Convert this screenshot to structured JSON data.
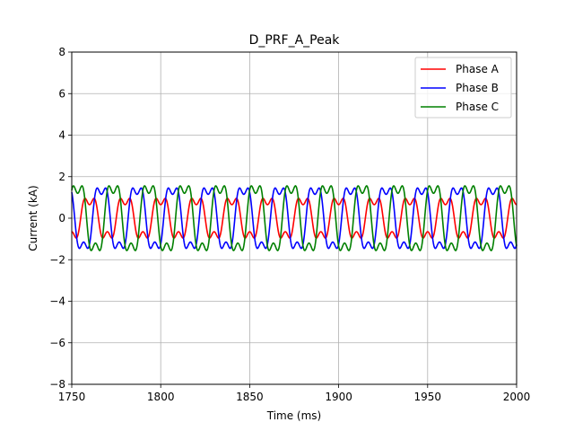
{
  "chart_data": {
    "type": "line",
    "title": "D_PRF_A_Peak",
    "xlabel": "Time (ms)",
    "ylabel": "Current (kA)",
    "xlim": [
      1750,
      2000
    ],
    "ylim": [
      -8,
      8
    ],
    "xticks": [
      1750,
      1800,
      1850,
      1900,
      1950,
      2000
    ],
    "yticks": [
      -8,
      -6,
      -4,
      -2,
      0,
      2,
      4,
      6,
      8
    ],
    "grid": true,
    "legend_position": "top-right",
    "series": [
      {
        "name": "Phase A",
        "color": "#ff0000",
        "base_amp": 1.0,
        "harm_amp": 0.35,
        "phase_deg": 90
      },
      {
        "name": "Phase B",
        "color": "#0000ff",
        "base_amp": 1.6,
        "harm_amp": 0.45,
        "phase_deg": -30
      },
      {
        "name": "Phase C",
        "color": "#008000",
        "base_amp": 1.7,
        "harm_amp": 0.5,
        "phase_deg": 210
      }
    ],
    "base_period_ms": 20,
    "harmonic_order": 3
  }
}
